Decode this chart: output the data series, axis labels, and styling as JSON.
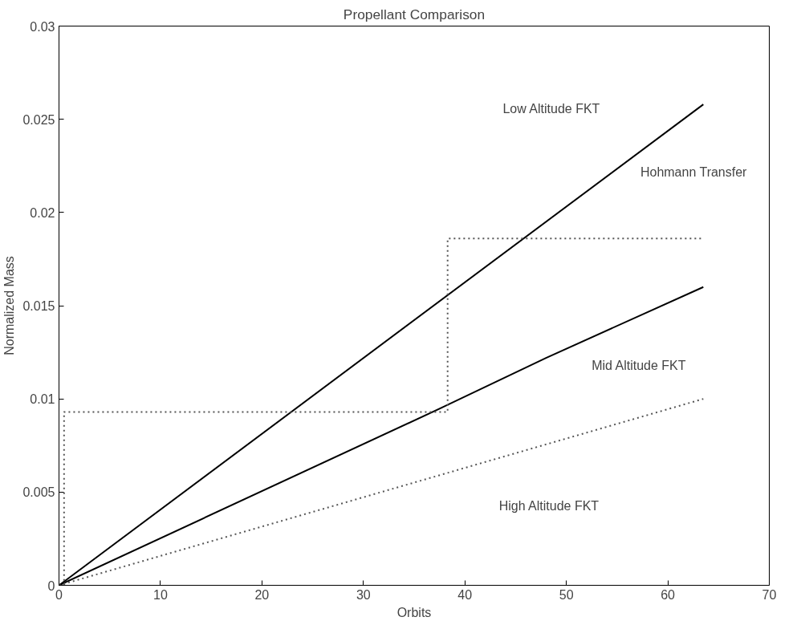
{
  "chart_data": {
    "type": "line",
    "title": "Propellant Comparison",
    "xlabel": "Orbits",
    "ylabel": "Normalized Mass",
    "xlim": [
      0,
      70
    ],
    "xticks": [
      0,
      10,
      20,
      30,
      40,
      50,
      60,
      70
    ],
    "ylim": [
      0,
      0.03
    ],
    "yticks": [
      0,
      0.005,
      0.01,
      0.015,
      0.02,
      0.025,
      0.03
    ],
    "grid": false,
    "marker": "none",
    "series": [
      {
        "color": "#000000",
        "line_style": "solid",
        "x": [
          0,
          63.5
        ],
        "values": [
          0,
          0.0258
        ]
      },
      {
        "color": "#000000",
        "line_style": "solid",
        "x": [
          0,
          38,
          48,
          63.5
        ],
        "values": [
          0,
          0.0096,
          0.0122,
          0.016
        ]
      },
      {
        "color": "#555555",
        "line_style": "dotted",
        "x": [
          0,
          63.5
        ],
        "values": [
          0,
          0.01
        ]
      },
      {
        "color": "#555555",
        "line_style": "dotted",
        "x": [
          0,
          0.5,
          0.5,
          38.3,
          38.3,
          63.5
        ],
        "values": [
          0,
          0,
          0.0093,
          0.0093,
          0.0186,
          0.0186
        ]
      }
    ],
    "annotations": [
      "Low Altitude FKT",
      "Mid Altitude FKT",
      "High Altitude FKT",
      "Hohmann Transfer"
    ]
  }
}
